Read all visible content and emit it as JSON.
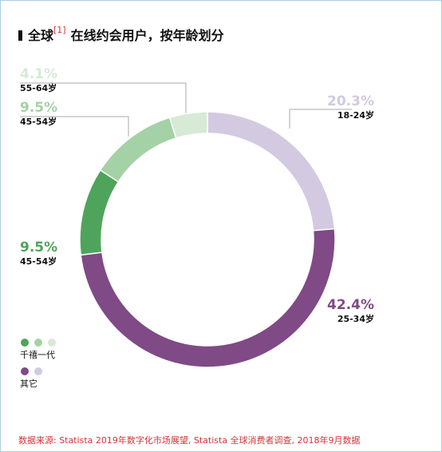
{
  "chart_data": {
    "type": "donut",
    "title": "全球",
    "title_note": "[1]",
    "title_rest": "在线约会用户，按年龄划分",
    "categories": [
      "18-24岁",
      "25-34岁",
      "45-54岁",
      "45-54岁",
      "55-64岁"
    ],
    "values": [
      20.3,
      42.4,
      9.5,
      9.5,
      4.1
    ],
    "value_labels": [
      "20.3%",
      "42.4%",
      "9.5%",
      "9.5%",
      "4.1%"
    ],
    "colors": [
      "#d3c9e1",
      "#7f4a86",
      "#4fa45b",
      "#a4d1a6",
      "#d6ead6"
    ],
    "legend": [
      {
        "label": "千禧一代",
        "colors": [
          "#4fa45b",
          "#a4d1a6",
          "#d6ead6"
        ]
      },
      {
        "label": "其它",
        "colors": [
          "#7f4a86",
          "#d3c9e1"
        ]
      }
    ],
    "source": "数据来源: Statista 2019年数字化市场展望, Statista 全球消费者调查, 2018年9月数据"
  }
}
